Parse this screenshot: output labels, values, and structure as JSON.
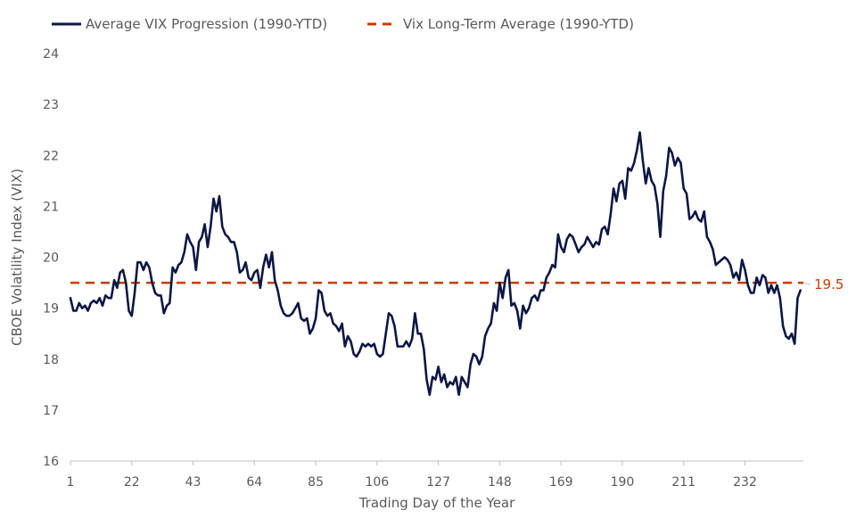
{
  "chart_data": {
    "type": "line",
    "title": "",
    "xlabel": "Trading Day of the Year",
    "ylabel": "CBOE Volatility Index (VIX)",
    "xlim": [
      1,
      252
    ],
    "ylim": [
      16,
      24
    ],
    "x_ticks": [
      1,
      22,
      43,
      64,
      85,
      106,
      127,
      148,
      169,
      190,
      211,
      232
    ],
    "y_ticks": [
      16,
      17,
      18,
      19,
      20,
      21,
      22,
      23,
      24
    ],
    "colors": {
      "vix": "#0d1744",
      "average": "#c43e00",
      "text": "#595959",
      "axis": "#bfbfbf"
    },
    "legend": [
      {
        "label": "Average VIX Progression (1990-YTD)",
        "style": "solid",
        "color": "#0d1744"
      },
      {
        "label": "Vix Long-Term Average (1990-YTD)",
        "style": "dashed",
        "color": "#c43e00"
      }
    ],
    "series": [
      {
        "name": "Average VIX Progression (1990-YTD)",
        "style": "solid",
        "points": [
          [
            1,
            19.2
          ],
          [
            2,
            18.95
          ],
          [
            3,
            18.95
          ],
          [
            4,
            19.1
          ],
          [
            5,
            19.0
          ],
          [
            6,
            19.05
          ],
          [
            7,
            18.95
          ],
          [
            8,
            19.1
          ],
          [
            9,
            19.15
          ],
          [
            10,
            19.1
          ],
          [
            11,
            19.2
          ],
          [
            12,
            19.05
          ],
          [
            13,
            19.25
          ],
          [
            14,
            19.2
          ],
          [
            15,
            19.2
          ],
          [
            16,
            19.55
          ],
          [
            17,
            19.4
          ],
          [
            18,
            19.7
          ],
          [
            19,
            19.75
          ],
          [
            20,
            19.5
          ],
          [
            21,
            18.95
          ],
          [
            22,
            18.85
          ],
          [
            23,
            19.3
          ],
          [
            24,
            19.9
          ],
          [
            25,
            19.9
          ],
          [
            26,
            19.75
          ],
          [
            27,
            19.9
          ],
          [
            28,
            19.8
          ],
          [
            29,
            19.5
          ],
          [
            30,
            19.3
          ],
          [
            31,
            19.25
          ],
          [
            32,
            19.25
          ],
          [
            33,
            18.9
          ],
          [
            34,
            19.05
          ],
          [
            35,
            19.1
          ],
          [
            36,
            19.8
          ],
          [
            37,
            19.7
          ],
          [
            38,
            19.85
          ],
          [
            39,
            19.9
          ],
          [
            40,
            20.1
          ],
          [
            41,
            20.45
          ],
          [
            42,
            20.3
          ],
          [
            43,
            20.2
          ],
          [
            44,
            19.75
          ],
          [
            45,
            20.3
          ],
          [
            46,
            20.4
          ],
          [
            47,
            20.65
          ],
          [
            48,
            20.2
          ],
          [
            49,
            20.6
          ],
          [
            50,
            21.15
          ],
          [
            51,
            20.9
          ],
          [
            52,
            21.2
          ],
          [
            53,
            20.6
          ],
          [
            54,
            20.45
          ],
          [
            55,
            20.4
          ],
          [
            56,
            20.3
          ],
          [
            57,
            20.3
          ],
          [
            58,
            20.1
          ],
          [
            59,
            19.7
          ],
          [
            60,
            19.75
          ],
          [
            61,
            19.9
          ],
          [
            62,
            19.6
          ],
          [
            63,
            19.55
          ],
          [
            64,
            19.7
          ],
          [
            65,
            19.75
          ],
          [
            66,
            19.4
          ],
          [
            67,
            19.8
          ],
          [
            68,
            20.05
          ],
          [
            69,
            19.8
          ],
          [
            70,
            20.1
          ],
          [
            71,
            19.55
          ],
          [
            72,
            19.35
          ],
          [
            73,
            19.05
          ],
          [
            74,
            18.9
          ],
          [
            75,
            18.85
          ],
          [
            76,
            18.85
          ],
          [
            77,
            18.9
          ],
          [
            78,
            19.0
          ],
          [
            79,
            19.1
          ],
          [
            80,
            18.8
          ],
          [
            81,
            18.75
          ],
          [
            82,
            18.8
          ],
          [
            83,
            18.5
          ],
          [
            84,
            18.6
          ],
          [
            85,
            18.8
          ],
          [
            86,
            19.35
          ],
          [
            87,
            19.3
          ],
          [
            88,
            18.95
          ],
          [
            89,
            18.85
          ],
          [
            90,
            18.9
          ],
          [
            91,
            18.7
          ],
          [
            92,
            18.65
          ],
          [
            93,
            18.55
          ],
          [
            94,
            18.7
          ],
          [
            95,
            18.25
          ],
          [
            96,
            18.45
          ],
          [
            97,
            18.35
          ],
          [
            98,
            18.1
          ],
          [
            99,
            18.05
          ],
          [
            100,
            18.15
          ],
          [
            101,
            18.3
          ],
          [
            102,
            18.25
          ],
          [
            103,
            18.3
          ],
          [
            104,
            18.25
          ],
          [
            105,
            18.3
          ],
          [
            106,
            18.1
          ],
          [
            107,
            18.05
          ],
          [
            108,
            18.1
          ],
          [
            109,
            18.5
          ],
          [
            110,
            18.9
          ],
          [
            111,
            18.85
          ],
          [
            112,
            18.65
          ],
          [
            113,
            18.25
          ],
          [
            114,
            18.25
          ],
          [
            115,
            18.25
          ],
          [
            116,
            18.35
          ],
          [
            117,
            18.25
          ],
          [
            118,
            18.4
          ],
          [
            119,
            18.9
          ],
          [
            120,
            18.5
          ],
          [
            121,
            18.5
          ],
          [
            122,
            18.2
          ],
          [
            123,
            17.6
          ],
          [
            124,
            17.3
          ],
          [
            125,
            17.65
          ],
          [
            126,
            17.6
          ],
          [
            127,
            17.85
          ],
          [
            128,
            17.55
          ],
          [
            129,
            17.7
          ],
          [
            130,
            17.45
          ],
          [
            131,
            17.55
          ],
          [
            132,
            17.5
          ],
          [
            133,
            17.65
          ],
          [
            134,
            17.3
          ],
          [
            135,
            17.65
          ],
          [
            136,
            17.55
          ],
          [
            137,
            17.45
          ],
          [
            138,
            17.9
          ],
          [
            139,
            18.1
          ],
          [
            140,
            18.05
          ],
          [
            141,
            17.9
          ],
          [
            142,
            18.05
          ],
          [
            143,
            18.45
          ],
          [
            144,
            18.6
          ],
          [
            145,
            18.7
          ],
          [
            146,
            19.1
          ],
          [
            147,
            18.95
          ],
          [
            148,
            19.5
          ],
          [
            149,
            19.2
          ],
          [
            150,
            19.6
          ],
          [
            151,
            19.75
          ],
          [
            152,
            19.05
          ],
          [
            153,
            19.1
          ],
          [
            154,
            18.95
          ],
          [
            155,
            18.6
          ],
          [
            156,
            19.05
          ],
          [
            157,
            18.9
          ],
          [
            158,
            19.0
          ],
          [
            159,
            19.2
          ],
          [
            160,
            19.25
          ],
          [
            161,
            19.15
          ],
          [
            162,
            19.35
          ],
          [
            163,
            19.35
          ],
          [
            164,
            19.6
          ],
          [
            165,
            19.7
          ],
          [
            166,
            19.85
          ],
          [
            167,
            19.8
          ],
          [
            168,
            20.45
          ],
          [
            169,
            20.2
          ],
          [
            170,
            20.1
          ],
          [
            171,
            20.35
          ],
          [
            172,
            20.45
          ],
          [
            173,
            20.4
          ],
          [
            174,
            20.25
          ],
          [
            175,
            20.1
          ],
          [
            176,
            20.2
          ],
          [
            177,
            20.25
          ],
          [
            178,
            20.4
          ],
          [
            179,
            20.3
          ],
          [
            180,
            20.2
          ],
          [
            181,
            20.3
          ],
          [
            182,
            20.25
          ],
          [
            183,
            20.55
          ],
          [
            184,
            20.6
          ],
          [
            185,
            20.45
          ],
          [
            186,
            20.85
          ],
          [
            187,
            21.35
          ],
          [
            188,
            21.1
          ],
          [
            189,
            21.45
          ],
          [
            190,
            21.5
          ],
          [
            191,
            21.15
          ],
          [
            192,
            21.75
          ],
          [
            193,
            21.7
          ],
          [
            194,
            21.85
          ],
          [
            195,
            22.1
          ],
          [
            196,
            22.45
          ],
          [
            197,
            21.9
          ],
          [
            198,
            21.45
          ],
          [
            199,
            21.75
          ],
          [
            200,
            21.5
          ],
          [
            201,
            21.4
          ],
          [
            202,
            21.05
          ],
          [
            203,
            20.4
          ],
          [
            204,
            21.3
          ],
          [
            205,
            21.6
          ],
          [
            206,
            22.15
          ],
          [
            207,
            22.05
          ],
          [
            208,
            21.8
          ],
          [
            209,
            21.95
          ],
          [
            210,
            21.85
          ],
          [
            211,
            21.35
          ],
          [
            212,
            21.25
          ],
          [
            213,
            20.75
          ],
          [
            214,
            20.8
          ],
          [
            215,
            20.9
          ],
          [
            216,
            20.75
          ],
          [
            217,
            20.7
          ],
          [
            218,
            20.9
          ],
          [
            219,
            20.4
          ],
          [
            220,
            20.3
          ],
          [
            221,
            20.15
          ],
          [
            222,
            19.85
          ],
          [
            223,
            19.9
          ],
          [
            224,
            19.95
          ],
          [
            225,
            20.0
          ],
          [
            226,
            19.95
          ],
          [
            227,
            19.85
          ],
          [
            228,
            19.6
          ],
          [
            229,
            19.7
          ],
          [
            230,
            19.55
          ],
          [
            231,
            19.95
          ],
          [
            232,
            19.75
          ],
          [
            233,
            19.45
          ],
          [
            234,
            19.3
          ],
          [
            235,
            19.3
          ],
          [
            236,
            19.6
          ],
          [
            237,
            19.45
          ],
          [
            238,
            19.65
          ],
          [
            239,
            19.6
          ],
          [
            240,
            19.3
          ],
          [
            241,
            19.45
          ],
          [
            242,
            19.3
          ],
          [
            243,
            19.45
          ],
          [
            244,
            19.2
          ],
          [
            245,
            18.65
          ],
          [
            246,
            18.45
          ],
          [
            247,
            18.4
          ],
          [
            248,
            18.5
          ],
          [
            249,
            18.3
          ],
          [
            250,
            19.2
          ],
          [
            251,
            19.35
          ]
        ]
      },
      {
        "name": "Vix Long-Term Average (1990-YTD)",
        "style": "dashed",
        "value": 19.5,
        "points": [
          [
            1,
            19.5
          ],
          [
            252,
            19.5
          ]
        ]
      }
    ],
    "annotations": [
      {
        "text": "19.5",
        "x": 252,
        "y": 19.5,
        "series": "Vix Long-Term Average (1990-YTD)"
      }
    ]
  }
}
